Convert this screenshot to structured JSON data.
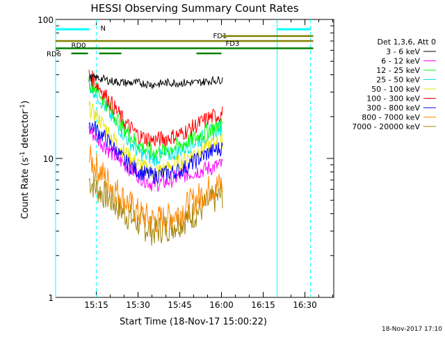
{
  "chart_data": {
    "type": "line",
    "title": "HESSI Observing Summary Count Rates",
    "xlabel": "Start Time (18-Nov-17 15:00:22)",
    "ylabel_main": "Count Rate (s",
    "ylabel_sup1": "-1",
    "ylabel_mid": " detector",
    "ylabel_sup2": "-1",
    "ylabel_end": ")",
    "y_scale": "log",
    "ylim": [
      1,
      100
    ],
    "xlim": [
      "15:00:22",
      "16:40:22"
    ],
    "x_ticks": [
      "15:15",
      "15:30",
      "15:45",
      "16:00",
      "16:15",
      "16:30"
    ],
    "y_ticks": [
      "1",
      "10",
      "100"
    ],
    "legend_header": "Det 1,3,6, Att 0",
    "legend_position": "right",
    "date_stamp": "18-Nov-2017 17:10",
    "x_minutes_from_start": [
      12,
      15,
      20,
      25,
      30,
      35,
      40,
      45,
      50,
      55,
      60
    ],
    "series": [
      {
        "name": "3 - 6 keV",
        "color": "#000000",
        "values": [
          38,
          38,
          36,
          35,
          35,
          34,
          35,
          35,
          35,
          36,
          37
        ]
      },
      {
        "name": "6 - 12 keV",
        "color": "#ff00ff",
        "values": [
          16,
          14,
          11,
          9,
          7.5,
          6.5,
          6.8,
          7.5,
          8,
          8.5,
          9
        ]
      },
      {
        "name": "12 - 25 keV",
        "color": "#00ff00",
        "values": [
          36,
          31,
          22,
          16,
          12.5,
          11,
          11.5,
          12.5,
          14,
          16,
          18
        ]
      },
      {
        "name": "25 - 50 keV",
        "color": "#00e5e5",
        "values": [
          34,
          29,
          20,
          14.5,
          11,
          10,
          10.5,
          11.5,
          13,
          15,
          17
        ]
      },
      {
        "name": "50 - 100 keV",
        "color": "#e5e500",
        "values": [
          23,
          20,
          14.5,
          11,
          9,
          8,
          8.5,
          9.5,
          11,
          12.5,
          13.5
        ]
      },
      {
        "name": "100 - 300 keV",
        "color": "#ff0000",
        "values": [
          40,
          34,
          25,
          18,
          14.5,
          13.5,
          14,
          15,
          17,
          19.5,
          21
        ]
      },
      {
        "name": "300 - 800 keV",
        "color": "#0000ff",
        "values": [
          18,
          16,
          12.5,
          9.5,
          8,
          7.5,
          7.8,
          8.2,
          9.5,
          11,
          12
        ]
      },
      {
        "name": "800 - 7000 keV",
        "color": "#ff8800",
        "values": [
          10,
          8.5,
          6.5,
          5,
          4,
          3.6,
          3.7,
          4.2,
          5,
          6,
          6.5
        ]
      },
      {
        "name": "7000 - 20000 keV",
        "color": "#a08000",
        "values": [
          7,
          6,
          5,
          4,
          3.4,
          3,
          3.2,
          3.5,
          4,
          4.8,
          5.5
        ]
      }
    ],
    "annotations": {
      "N": {
        "label": "N",
        "color": "#00ffff",
        "x": [
          "15:00:22",
          "15:12:30"
        ],
        "y": 85
      },
      "FD1": {
        "label": "FD1",
        "color": "#808000",
        "x": [
          "15:00:22",
          "16:33:00"
        ],
        "y": 70
      },
      "FD3": {
        "label": "FD3",
        "color": "#808000"
      },
      "RD0": {
        "label": "RD0",
        "color": "#008000"
      },
      "RD6": {
        "label": "RD6",
        "color": "#008000"
      }
    },
    "vertical_lines": {
      "solid_cyan": [
        "15:00:22",
        "16:20:00"
      ],
      "dashed_cyan": [
        "15:15:00",
        "16:32:00"
      ]
    }
  }
}
